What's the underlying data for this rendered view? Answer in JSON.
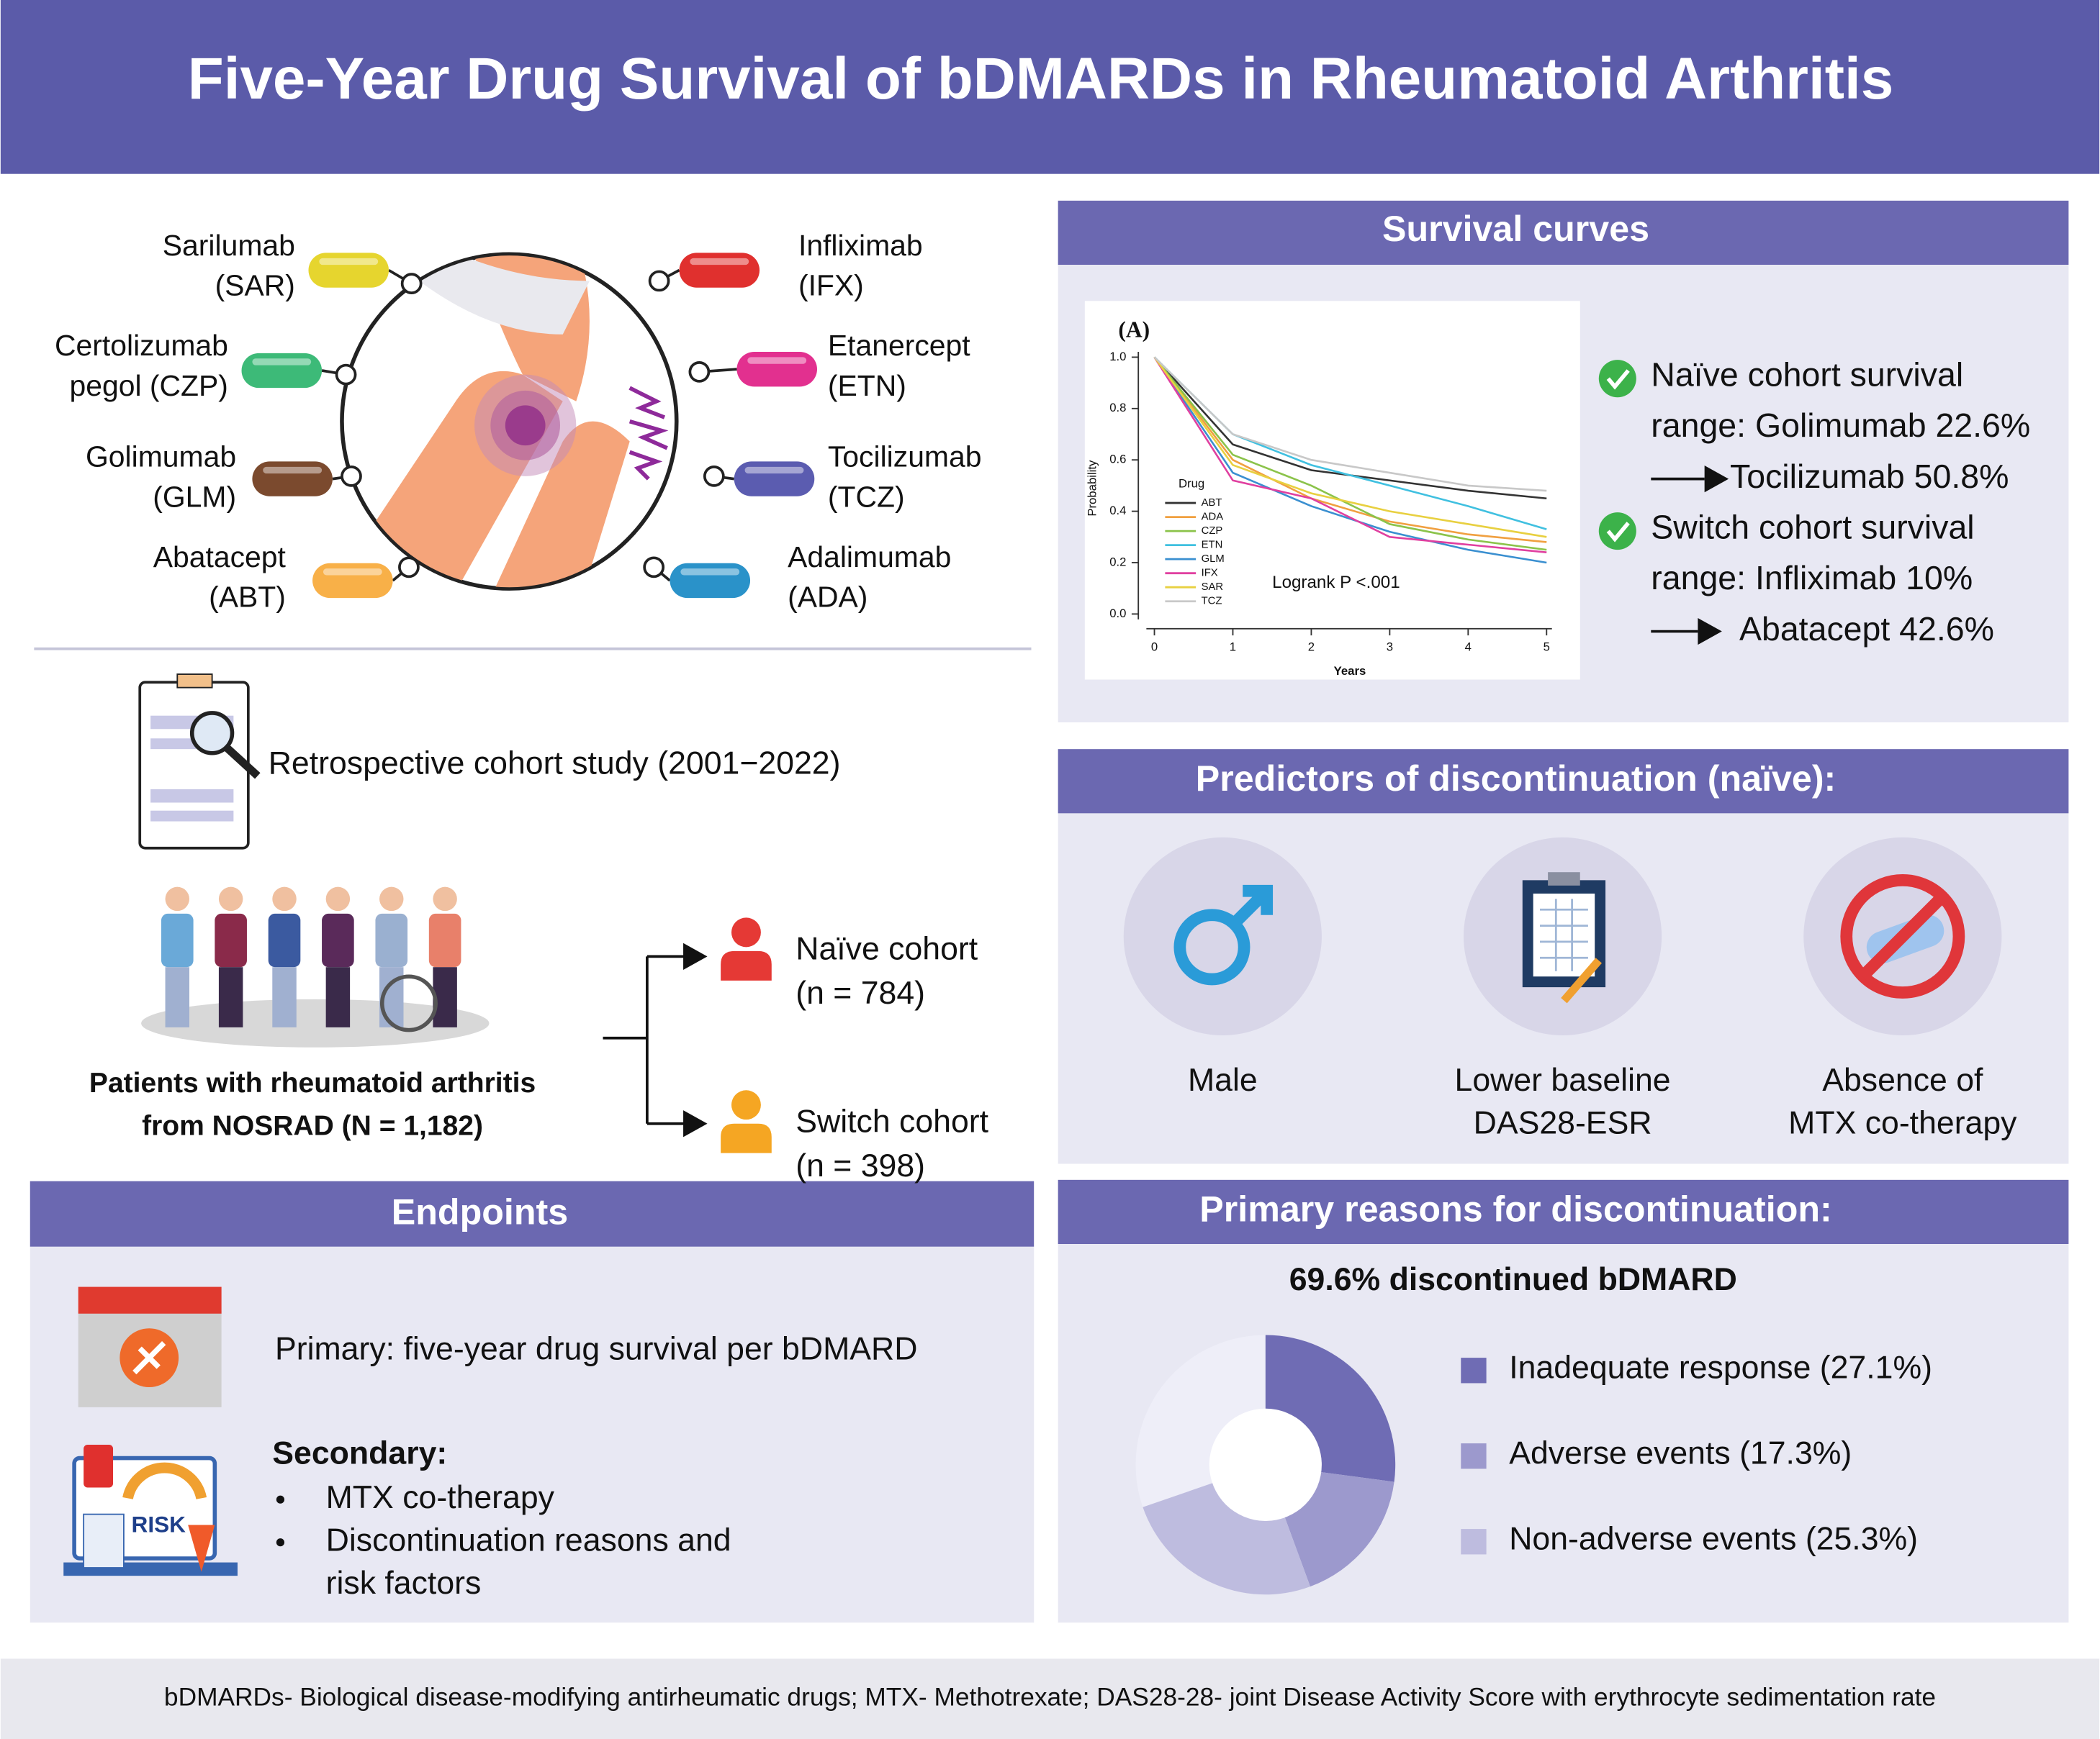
{
  "header": {
    "title": "Five-Year Drug Survival of bDMARDs in Rheumatoid Arthritis"
  },
  "drugs": [
    {
      "lines": [
        "Sarilumab",
        "(SAR)"
      ],
      "color": "#e6d52e"
    },
    {
      "lines": [
        "Certolizumab",
        "pegol (CZP)"
      ],
      "color": "#3dba78"
    },
    {
      "lines": [
        "Golimumab",
        "(GLM)"
      ],
      "color": "#7b4a2e"
    },
    {
      "lines": [
        "Abatacept",
        "(ABT)"
      ],
      "color": "#f8b048"
    },
    {
      "lines": [
        "Infliximab",
        "(IFX)"
      ],
      "color": "#e0302e"
    },
    {
      "lines": [
        "Etanercept",
        "(ETN)"
      ],
      "color": "#e2308f"
    },
    {
      "lines": [
        "Tocilizumab",
        "(TCZ)"
      ],
      "color": "#5b5cb0"
    },
    {
      "lines": [
        "Adalimumab",
        "(ADA)"
      ],
      "color": "#2a92c9"
    }
  ],
  "study": {
    "text": "Retrospective cohort study (2001−2022)"
  },
  "patients": {
    "lines": [
      "Patients with rheumatoid arthritis",
      "from NOSRAD (N = 1,182)"
    ]
  },
  "cohorts": [
    {
      "lines": [
        "Naïve cohort",
        "(n = 784)"
      ],
      "color": "#e53935"
    },
    {
      "lines": [
        "Switch cohort",
        "(n = 398)"
      ],
      "color": "#f5a623"
    }
  ],
  "endpoints": {
    "title": "Endpoints",
    "primary": "Primary: five-year drug survival per bDMARD",
    "secondary_title": "Secondary:",
    "bullets": [
      [
        "MTX co-therapy"
      ],
      [
        "Discontinuation reasons and",
        "risk factors"
      ]
    ],
    "risk_icon_text": "RISK"
  },
  "survival": {
    "title": "Survival curves",
    "chart_data": {
      "type": "line",
      "panel_label": "(A)",
      "x_label": "Years",
      "y_label": "Probability",
      "legend_title": "Drug",
      "annotation": "Logrank P <.001",
      "x": [
        0,
        1,
        2,
        3,
        4,
        5
      ],
      "xlim": [
        0,
        5
      ],
      "ylim": [
        0,
        1
      ],
      "xticks": [
        0,
        1,
        2,
        3,
        4,
        5
      ],
      "yticks": [
        {
          "value": 0,
          "label": "0.0"
        },
        {
          "value": 0.2,
          "label": "0.2"
        },
        {
          "value": 0.4,
          "label": "0.4"
        },
        {
          "value": 0.6,
          "label": "0.6"
        },
        {
          "value": 0.8,
          "label": "0.8"
        },
        {
          "value": 1,
          "label": "1.0"
        }
      ],
      "series": [
        {
          "name": "ABT",
          "color": "#333333",
          "values": [
            1.0,
            0.66,
            0.56,
            0.52,
            0.48,
            0.45
          ]
        },
        {
          "name": "ADA",
          "color": "#f0a040",
          "values": [
            1.0,
            0.6,
            0.45,
            0.36,
            0.31,
            0.28
          ]
        },
        {
          "name": "CZP",
          "color": "#8bc34a",
          "values": [
            1.0,
            0.62,
            0.5,
            0.35,
            0.29,
            0.25
          ]
        },
        {
          "name": "ETN",
          "color": "#40c0e0",
          "values": [
            1.0,
            0.7,
            0.58,
            0.5,
            0.42,
            0.33
          ]
        },
        {
          "name": "GLM",
          "color": "#3a8fd0",
          "values": [
            1.0,
            0.55,
            0.42,
            0.32,
            0.25,
            0.2
          ]
        },
        {
          "name": "IFX",
          "color": "#e040a0",
          "values": [
            1.0,
            0.52,
            0.45,
            0.3,
            0.27,
            0.24
          ]
        },
        {
          "name": "SAR",
          "color": "#e8d040",
          "values": [
            1.0,
            0.58,
            0.47,
            0.4,
            0.35,
            0.3
          ]
        },
        {
          "name": "TCZ",
          "color": "#c8c8c8",
          "values": [
            1.0,
            0.7,
            0.6,
            0.55,
            0.5,
            0.48
          ]
        }
      ]
    },
    "findings": [
      {
        "lines": [
          "Naïve cohort survival",
          "range: Golimumab 22.6%",
          "Tocilizumab 50.8%"
        ]
      },
      {
        "lines": [
          "Switch cohort survival",
          "range: Infliximab 10%",
          "Abatacept 42.6%"
        ]
      }
    ]
  },
  "predictors": {
    "title": "Predictors of discontinuation (naïve):",
    "items": [
      {
        "lines": [
          "Male"
        ]
      },
      {
        "lines": [
          "Lower baseline",
          "DAS28-ESR"
        ]
      },
      {
        "lines": [
          "Absence of",
          "MTX co-therapy"
        ]
      }
    ]
  },
  "reasons": {
    "title": "Primary reasons for discontinuation:",
    "subtitle": "69.6% discontinued bDMARD",
    "segments": [
      {
        "label": "Inadequate response (27.1%)",
        "value": 27.1,
        "color": "#6f6cb4"
      },
      {
        "label": "Adverse events (17.3%)",
        "value": 17.3,
        "color": "#9c99cd"
      },
      {
        "label": "Non-adverse events (25.3%)",
        "value": 25.3,
        "color": "#bebcdf"
      }
    ]
  },
  "footer": {
    "text": "bDMARDs- Biological disease-modifying antirheumatic drugs; MTX- Methotrexate; DAS28-28- joint Disease Activity Score with erythrocyte sedimentation rate"
  }
}
